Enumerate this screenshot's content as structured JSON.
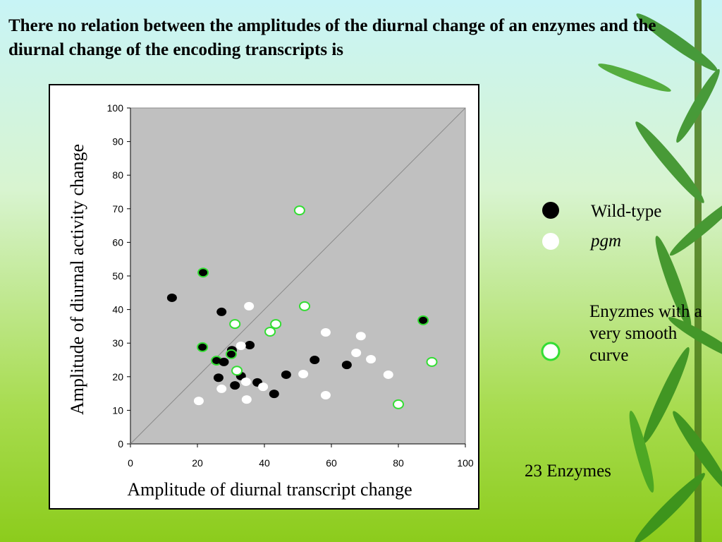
{
  "chart_data": {
    "type": "scatter",
    "title": "There no relation between the amplitudes of the diurnal change of an enzymes and  the diurnal change of the encoding transcripts is",
    "x_label": "Amplitude of diurnal transcript change",
    "y_label": "Amplitude of diurnal activity change",
    "xlim": [
      0,
      100
    ],
    "ylim": [
      0,
      100
    ],
    "xticks": [
      0,
      20,
      40,
      60,
      80,
      100
    ],
    "yticks": [
      0,
      10,
      20,
      30,
      40,
      50,
      60,
      70,
      80,
      90,
      100
    ],
    "diagonal": true,
    "highlight": {
      "label": "Enyzmes with a very smooth curve",
      "color": "#33dd33"
    },
    "series": [
      {
        "name": "Wild-type",
        "color": "#000000",
        "x": [
          12.4,
          21.7,
          27.2,
          21.5,
          30.3,
          35.6,
          25.7,
          27.9,
          26.3,
          33.0,
          31.2,
          37.9,
          42.9,
          46.5,
          55.0,
          64.6,
          87.4,
          30.1
        ],
        "values": [
          43.5,
          51.0,
          39.3,
          28.8,
          27.9,
          29.4,
          24.8,
          24.4,
          19.7,
          20.2,
          17.4,
          18.3,
          14.9,
          20.6,
          25.0,
          23.5,
          36.8,
          26.7
        ],
        "highlighted": [
          false,
          true,
          false,
          true,
          false,
          false,
          true,
          false,
          false,
          false,
          false,
          false,
          false,
          false,
          false,
          false,
          true,
          true
        ]
      },
      {
        "name": "pgm",
        "color": "#ffffff",
        "x": [
          50.5,
          35.4,
          52.0,
          31.2,
          43.4,
          41.7,
          58.3,
          68.8,
          33.0,
          67.4,
          71.8,
          90.0,
          31.8,
          51.6,
          77.0,
          34.5,
          39.6,
          27.2,
          58.3,
          20.4,
          34.7,
          80.0
        ],
        "values": [
          69.5,
          41.0,
          41.0,
          35.7,
          35.7,
          33.4,
          33.2,
          32.1,
          29.2,
          27.1,
          25.2,
          24.4,
          21.8,
          20.8,
          20.6,
          18.5,
          17.0,
          16.4,
          14.5,
          12.8,
          13.2,
          11.8
        ],
        "highlighted": [
          true,
          false,
          true,
          true,
          true,
          true,
          false,
          false,
          false,
          false,
          false,
          true,
          true,
          false,
          false,
          false,
          false,
          false,
          false,
          false,
          false,
          true
        ]
      }
    ],
    "note": "23 Enzymes"
  }
}
